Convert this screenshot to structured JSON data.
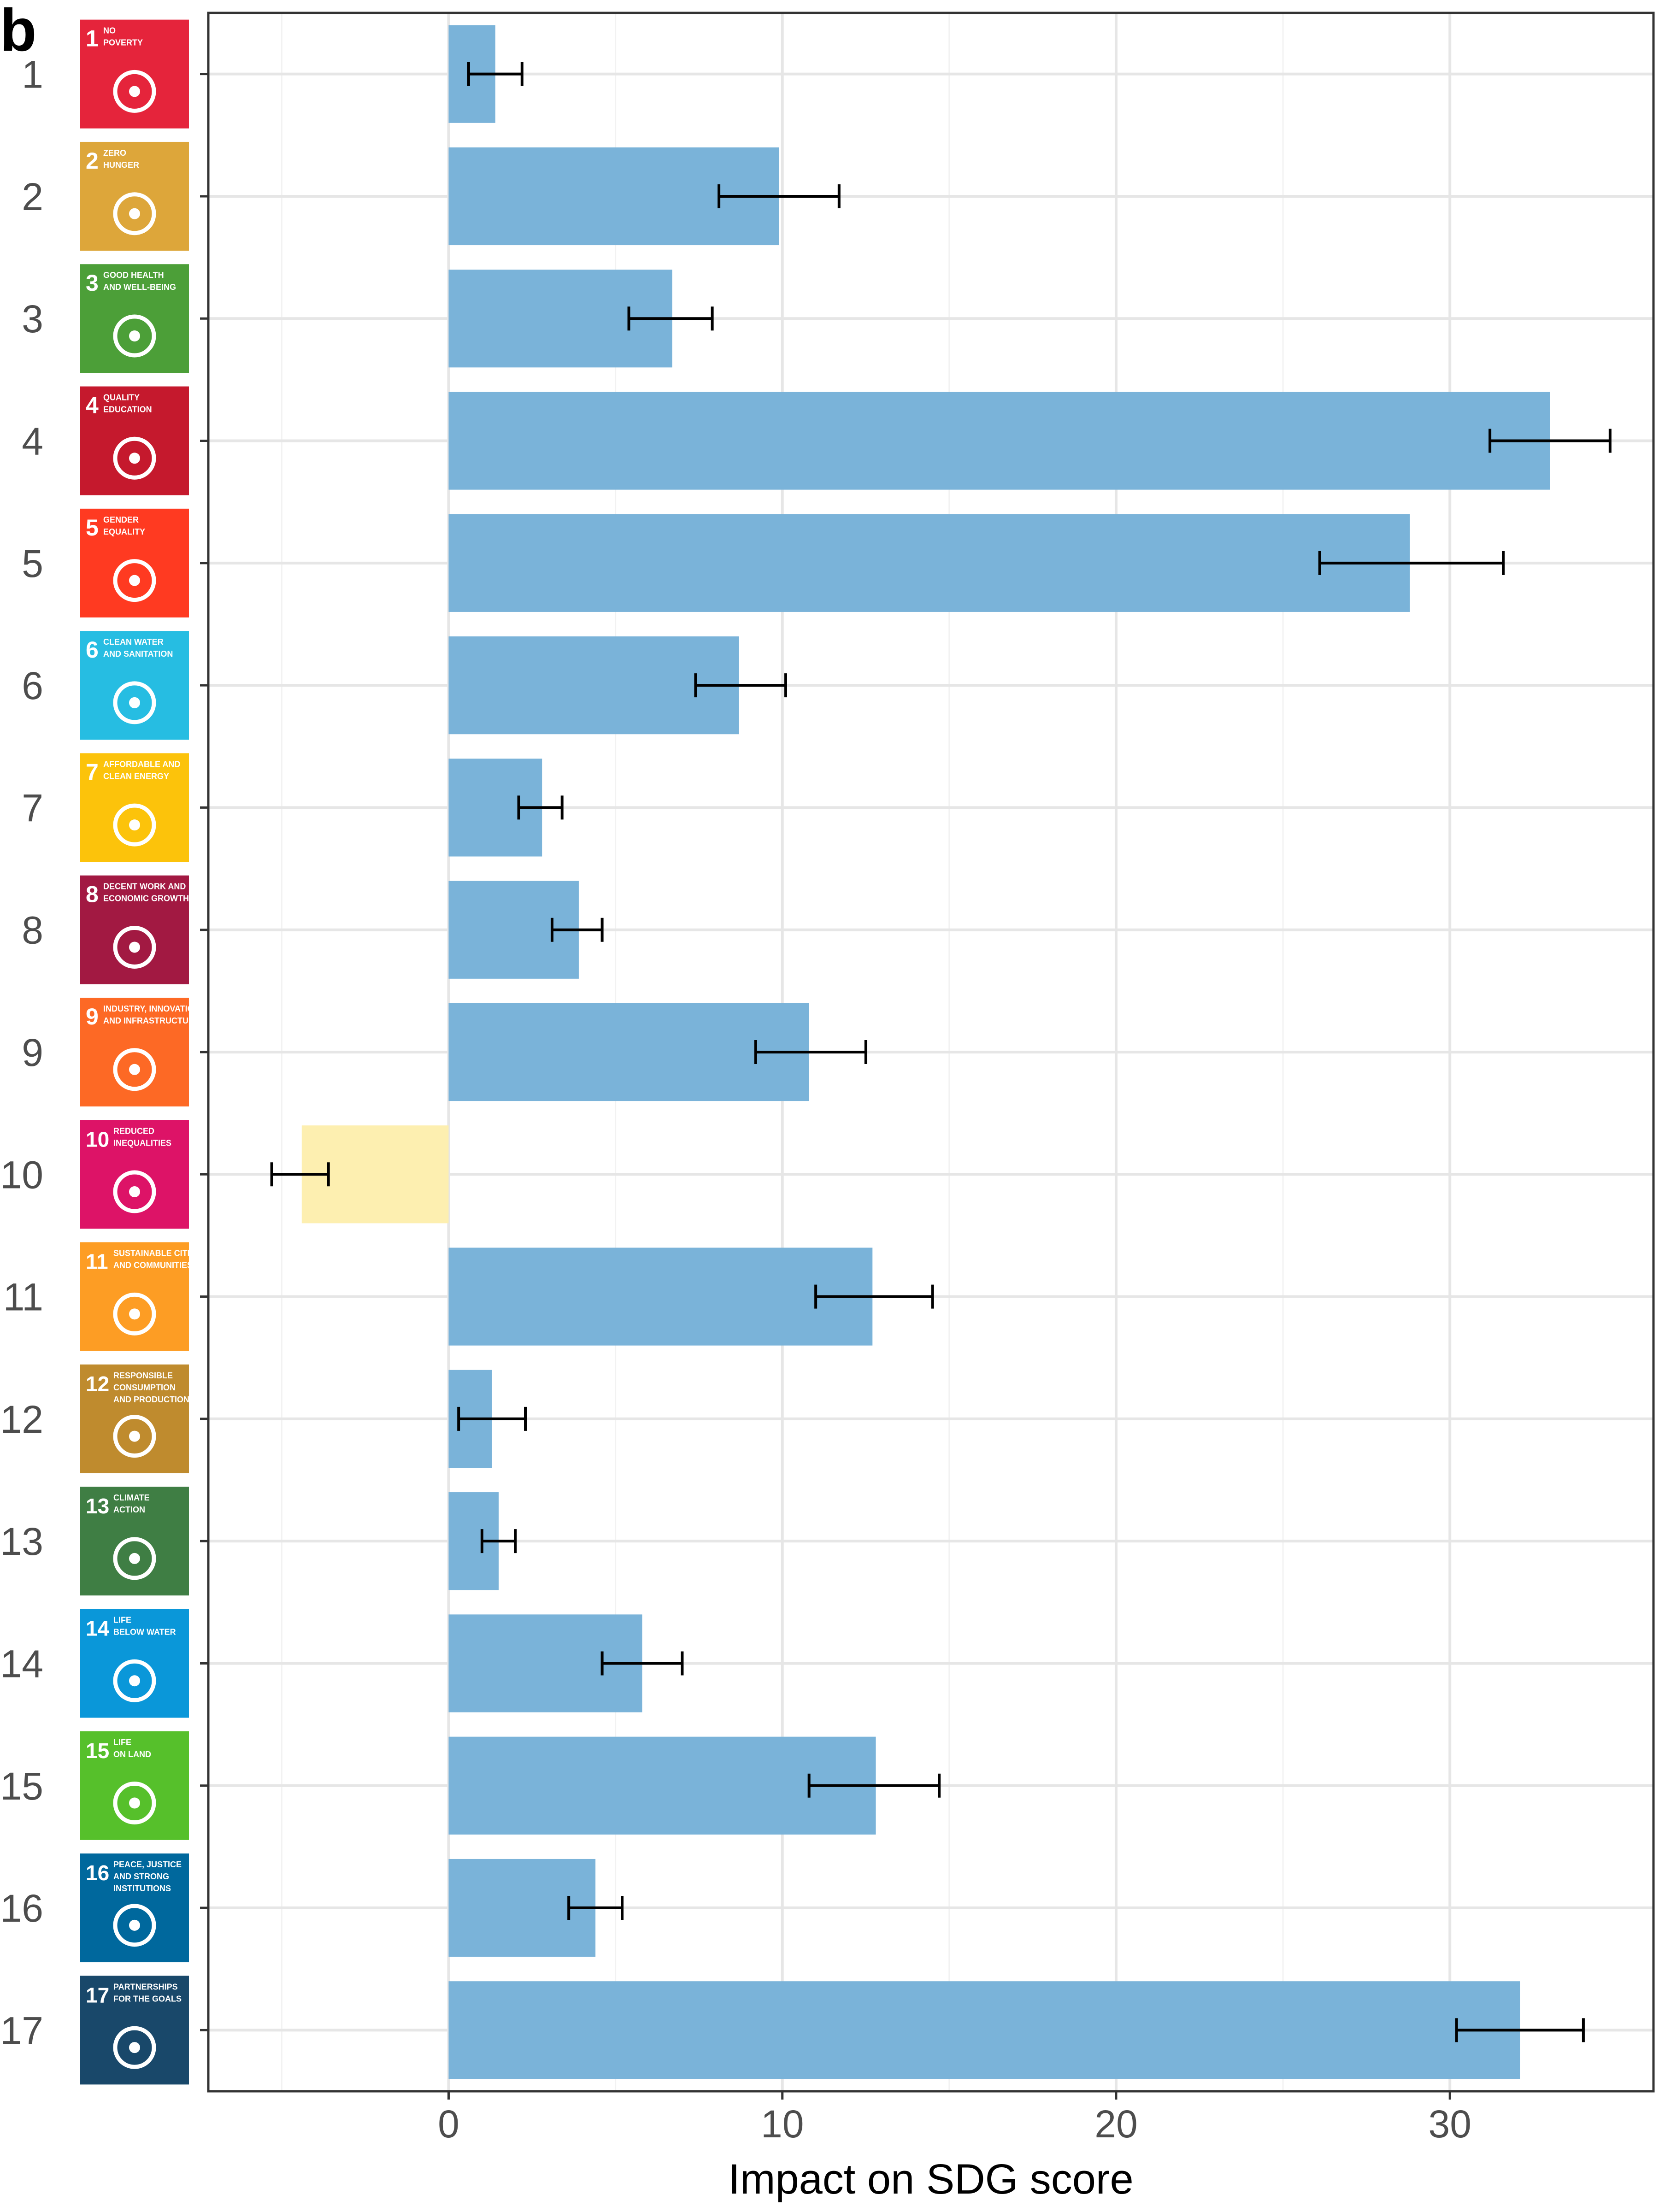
{
  "panel_label": "b",
  "chart_data": {
    "type": "bar",
    "orientation": "horizontal",
    "xlabel": "Impact on SDG score",
    "ylabel": "",
    "xlim": [
      -7.2,
      36.1
    ],
    "x_ticks": [
      0,
      10,
      20,
      30
    ],
    "grid": true,
    "categories": [
      "1",
      "2",
      "3",
      "4",
      "5",
      "6",
      "7",
      "8",
      "9",
      "10",
      "11",
      "12",
      "13",
      "14",
      "15",
      "16",
      "17"
    ],
    "values": [
      1.4,
      9.9,
      6.7,
      33.0,
      28.8,
      8.7,
      2.8,
      3.9,
      10.8,
      -4.4,
      12.7,
      1.3,
      1.5,
      5.8,
      12.8,
      4.4,
      32.1
    ],
    "error_low": [
      0.6,
      8.1,
      5.4,
      31.2,
      26.1,
      7.4,
      2.1,
      3.1,
      9.2,
      -5.3,
      11.0,
      0.3,
      1.0,
      4.6,
      10.8,
      3.6,
      30.2
    ],
    "error_high": [
      2.2,
      11.7,
      7.9,
      34.8,
      31.6,
      10.1,
      3.4,
      4.6,
      12.5,
      -3.6,
      14.5,
      2.3,
      2.0,
      7.0,
      14.7,
      5.2,
      34.0
    ],
    "positive_color": "#7ab3d9",
    "negative_color": "#fdefb0"
  },
  "sdg_icons": [
    {
      "num": "1",
      "title": [
        "NO",
        "POVERTY"
      ],
      "color": "#e5243b"
    },
    {
      "num": "2",
      "title": [
        "ZERO",
        "HUNGER"
      ],
      "color": "#dda63a"
    },
    {
      "num": "3",
      "title": [
        "GOOD HEALTH",
        "AND WELL-BEING"
      ],
      "color": "#4c9f38"
    },
    {
      "num": "4",
      "title": [
        "QUALITY",
        "EDUCATION"
      ],
      "color": "#c5192d"
    },
    {
      "num": "5",
      "title": [
        "GENDER",
        "EQUALITY"
      ],
      "color": "#ff3a21"
    },
    {
      "num": "6",
      "title": [
        "CLEAN WATER",
        "AND SANITATION"
      ],
      "color": "#26bde2"
    },
    {
      "num": "7",
      "title": [
        "AFFORDABLE AND",
        "CLEAN ENERGY"
      ],
      "color": "#fcc30b"
    },
    {
      "num": "8",
      "title": [
        "DECENT WORK AND",
        "ECONOMIC GROWTH"
      ],
      "color": "#a21942"
    },
    {
      "num": "9",
      "title": [
        "INDUSTRY, INNOVATION",
        "AND INFRASTRUCTURE"
      ],
      "color": "#fd6925"
    },
    {
      "num": "10",
      "title": [
        "REDUCED",
        "INEQUALITIES"
      ],
      "color": "#dd1367"
    },
    {
      "num": "11",
      "title": [
        "SUSTAINABLE CITIES",
        "AND COMMUNITIES"
      ],
      "color": "#fd9d24"
    },
    {
      "num": "12",
      "title": [
        "RESPONSIBLE",
        "CONSUMPTION",
        "AND PRODUCTION"
      ],
      "color": "#bf8b2e"
    },
    {
      "num": "13",
      "title": [
        "CLIMATE",
        "ACTION"
      ],
      "color": "#3f7e44"
    },
    {
      "num": "14",
      "title": [
        "LIFE",
        "BELOW WATER"
      ],
      "color": "#0a97d9"
    },
    {
      "num": "15",
      "title": [
        "LIFE",
        "ON LAND"
      ],
      "color": "#56c02b"
    },
    {
      "num": "16",
      "title": [
        "PEACE, JUSTICE",
        "AND STRONG",
        "INSTITUTIONS"
      ],
      "color": "#00689d"
    },
    {
      "num": "17",
      "title": [
        "PARTNERSHIPS",
        "FOR THE GOALS"
      ],
      "color": "#19486a"
    }
  ]
}
